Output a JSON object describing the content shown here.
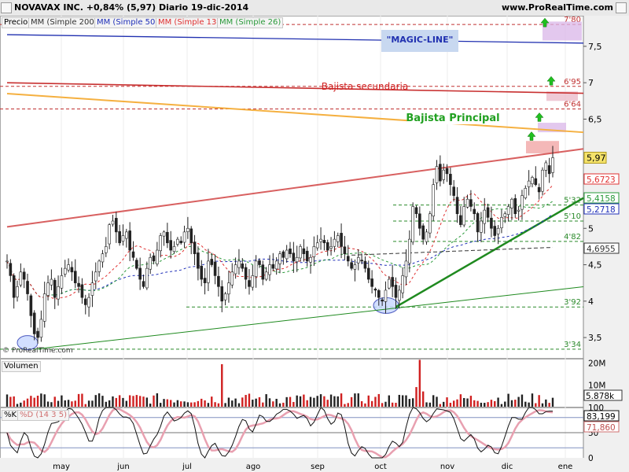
{
  "header": {
    "title": "NOVAVAX INC.   +0,84% (5,97)   Diario   19-dic-2014",
    "source": "www.ProRealTime.com"
  },
  "legend": {
    "price": "Precio",
    "mm200": "MM (Simple 200)",
    "mm50": "MM (Simple 50)",
    "mm13": "MM (Simple 13)",
    "mm26": "MM (Simple 26)"
  },
  "volume_label": "Volumen",
  "stoch_k_label": "%K",
  "stoch_d_label": "%D (14 3 5)",
  "watermark": "© ProRealTime.com",
  "colors": {
    "up": "#00aa00",
    "down": "#333333",
    "mm200": "#333333",
    "mm50": "#1f2fb8",
    "mm13": "#e03030",
    "mm26": "#2a9a3a",
    "resistance_red": "#d86060",
    "trend_orange": "#f5b040",
    "magic_blue": "#2030b0",
    "support_green": "#1f8a1f"
  },
  "chart_data": [
    {
      "type": "candlestick",
      "panel": "price",
      "y_axis_ticks": [
        "7,5",
        "7",
        "6,5",
        "5",
        "4,5",
        "4",
        "3,5"
      ],
      "ylim": [
        3.22,
        7.92
      ],
      "x_months": [
        "may",
        "jun",
        "jul",
        "ago",
        "sep",
        "oct",
        "nov",
        "dic",
        "ene"
      ],
      "last_price_label": "5,97",
      "ma_value_labels": [
        {
          "name": "MM (Simple 13)",
          "value": "5,6723",
          "color": "#e03030"
        },
        {
          "name": "MM (Simple 26)",
          "value": "5,4158",
          "color": "#2a9a3a"
        },
        {
          "name": "MM (Simple 50)",
          "value": "5,2718",
          "color": "#1f2fb8"
        },
        {
          "name": "MM (Simple 200)",
          "value": "4,6955",
          "color": "#333333"
        }
      ],
      "levels": [
        {
          "label": "7'80",
          "value": 7.8,
          "color": "#c03030"
        },
        {
          "label": "6'95",
          "value": 6.95,
          "color": "#c03030"
        },
        {
          "label": "6'64",
          "value": 6.64,
          "color": "#c03030"
        },
        {
          "label": "5'32",
          "value": 5.32,
          "color": "#2a8a2a"
        },
        {
          "label": "5'10",
          "value": 5.1,
          "color": "#2a8a2a"
        },
        {
          "label": "4'82",
          "value": 4.82,
          "color": "#2a8a2a"
        },
        {
          "label": "3'92",
          "value": 3.92,
          "color": "#2a8a2a"
        },
        {
          "label": "3'34",
          "value": 3.34,
          "color": "#2a8a2a"
        }
      ],
      "annotations": [
        {
          "text": "\"MAGIC-LINE\"",
          "color": "#2030b0"
        },
        {
          "text": "Bajista secundaria",
          "color": "#d02020"
        },
        {
          "text": "Bajista Principal",
          "color": "#20a020"
        }
      ],
      "trendlines": [
        {
          "name": "magic-line",
          "from": [
            0,
            7.66
          ],
          "to": [
            175,
            7.54
          ]
        },
        {
          "name": "bajista-secundaria",
          "from": [
            0,
            7.0
          ],
          "to": [
            175,
            6.85
          ]
        },
        {
          "name": "bajista-principal",
          "from": [
            0,
            6.85
          ],
          "to": [
            175,
            6.3
          ]
        },
        {
          "name": "resistance-red",
          "from": [
            0,
            5.02
          ],
          "to": [
            175,
            6.13
          ]
        },
        {
          "name": "support-green-long",
          "from": [
            8,
            3.34
          ],
          "to": [
            175,
            4.23
          ]
        },
        {
          "name": "support-green-short",
          "from": [
            114,
            3.92
          ],
          "to": [
            175,
            5.58
          ]
        }
      ],
      "closes": [
        4.55,
        4.35,
        4.05,
        4.2,
        4.4,
        4.3,
        4.1,
        3.8,
        3.55,
        3.5,
        3.75,
        4.1,
        4.25,
        4.3,
        4.05,
        4.2,
        4.35,
        4.45,
        4.5,
        4.4,
        4.25,
        4.2,
        4.05,
        3.95,
        4.05,
        4.25,
        4.4,
        4.55,
        4.65,
        4.75,
        5.05,
        5.1,
        4.95,
        4.8,
        4.9,
        4.95,
        4.7,
        4.6,
        4.45,
        4.3,
        4.2,
        4.45,
        4.6,
        4.55,
        4.7,
        4.9,
        4.95,
        4.8,
        4.7,
        4.75,
        4.85,
        4.8,
        4.95,
        5.0,
        4.8,
        4.65,
        4.45,
        4.3,
        4.25,
        4.55,
        4.5,
        4.35,
        4.2,
        4.0,
        4.1,
        4.25,
        4.4,
        4.5,
        4.55,
        4.45,
        4.3,
        4.2,
        4.35,
        4.55,
        4.5,
        4.3,
        4.4,
        4.5,
        4.45,
        4.55,
        4.65,
        4.6,
        4.7,
        4.65,
        4.55,
        4.6,
        4.75,
        4.65,
        4.55,
        4.6,
        4.75,
        4.8,
        4.85,
        4.8,
        4.7,
        4.75,
        4.85,
        4.9,
        4.75,
        4.65,
        4.55,
        4.45,
        4.5,
        4.6,
        4.55,
        4.45,
        4.3,
        4.2,
        4.15,
        4.05,
        4.0,
        4.15,
        4.3,
        4.2,
        4.05,
        4.15,
        4.35,
        4.55,
        4.85,
        5.3,
        5.2,
        5.0,
        4.85,
        4.95,
        5.2,
        5.6,
        5.85,
        5.65,
        5.8,
        5.75,
        5.6,
        5.45,
        5.2,
        5.05,
        5.3,
        5.4,
        5.3,
        5.2,
        4.95,
        5.1,
        5.25,
        5.15,
        5.0,
        4.9,
        5.0,
        5.15,
        5.2,
        5.3,
        5.4,
        5.2,
        5.25,
        5.45,
        5.55,
        5.65,
        5.7,
        5.6,
        5.5,
        5.8,
        5.9,
        5.75,
        5.97
      ]
    },
    {
      "type": "bar",
      "panel": "volume",
      "y_axis_ticks": [
        "20M",
        "10M"
      ],
      "last_value_label": "5.878k",
      "ylim": [
        0,
        22000000
      ]
    },
    {
      "type": "line",
      "panel": "stochastic",
      "y_axis_ticks": [
        "100",
        "50",
        "0"
      ],
      "ylim": [
        0,
        100
      ],
      "k_value_label": "83,199",
      "d_value_label": "71,860"
    }
  ]
}
